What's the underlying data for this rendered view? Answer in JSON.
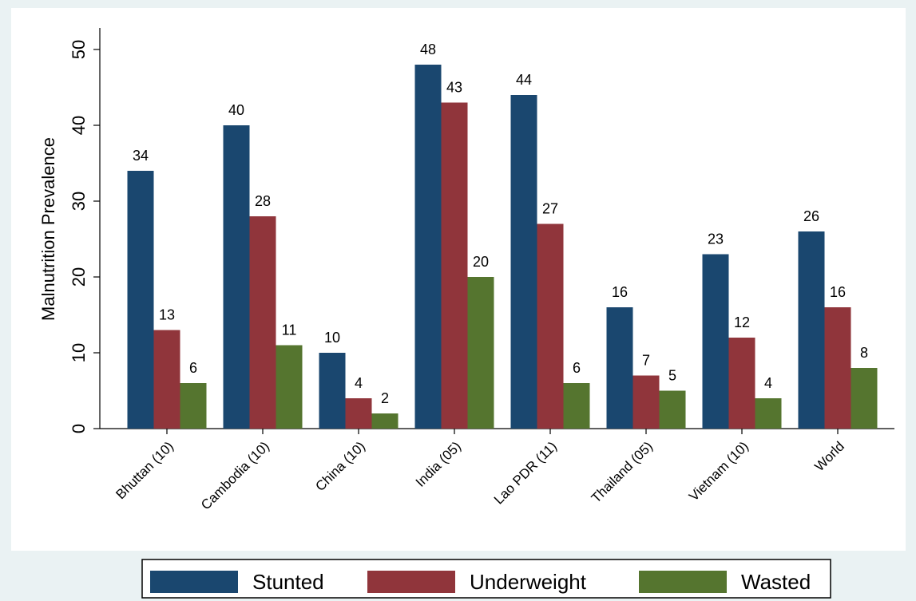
{
  "chart_data": {
    "type": "bar",
    "y_label": "Malnutrition Prevalence",
    "categories": [
      "Bhuttan (10)",
      "Cambodia (10)",
      "China (10)",
      "India (05)",
      "Lao PDR (11)",
      "Thailand (05)",
      "Vietnam (10)",
      "World"
    ],
    "series": [
      {
        "name": "Stunted",
        "color": "#1a476f",
        "values": [
          34,
          40,
          10,
          48,
          44,
          16,
          23,
          26
        ]
      },
      {
        "name": "Underweight",
        "color": "#90353b",
        "values": [
          13,
          28,
          4,
          43,
          27,
          7,
          12,
          16
        ]
      },
      {
        "name": "Wasted",
        "color": "#55752f",
        "values": [
          6,
          11,
          2,
          20,
          6,
          5,
          4,
          8
        ]
      }
    ],
    "ylim": [
      0,
      50
    ],
    "yticks": [
      0,
      10,
      20,
      30,
      40,
      50
    ],
    "grid": false,
    "legend": "bottom"
  }
}
